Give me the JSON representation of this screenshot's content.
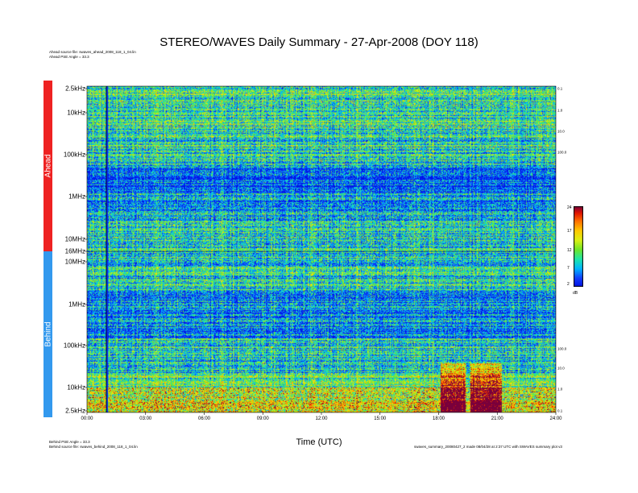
{
  "header": {
    "title": "STEREO/WAVES Daily Summary - 27-Apr-2008 (DOY 118)",
    "ahead_source": "Ahead source file: swaves_ahead_2008_118_1_04.lin",
    "ahead_pse": "Ahead PSE Angle = 33.3",
    "behind_pse": "Behind PSE Angle = 33.3",
    "behind_source": "Behind source file: swaves_behind_2008_118_1_04.lin",
    "footer_right": "swaves_summary_20080427_2 made 08/04/28 at 2:37 UTC with SWAVES summary plot v3"
  },
  "bands": {
    "ahead": "Ahead",
    "behind": "Behind"
  },
  "colors": {
    "ahead": "#ee2222",
    "behind": "#3399ee"
  },
  "chart_data": {
    "type": "heatmap",
    "title": "STEREO/WAVES Daily Summary - 27-Apr-2008 (DOY 118)",
    "xlabel": "Time (UTC)",
    "x_ticks": [
      "00:00",
      "03:00",
      "06:00",
      "09:00",
      "12:00",
      "15:00",
      "18:00",
      "21:00",
      "24:00"
    ],
    "xlim": [
      "00:00",
      "24:00"
    ],
    "panels": [
      {
        "name": "Ahead",
        "y_ticks": [
          "2.5kHz",
          "10kHz",
          "100kHz",
          "1MHz",
          "10MHz",
          "16MHz"
        ]
      },
      {
        "name": "Behind",
        "y_ticks": [
          "16MHz",
          "10MHz",
          "1MHz",
          "100kHz",
          "10kHz",
          "2.5kHz"
        ]
      }
    ],
    "right_ticks_top": [
      "0.1",
      "1.0",
      "10.0",
      "100.0"
    ],
    "right_ticks_bottom": [
      "100.0",
      "10.0",
      "1.0",
      "0.1"
    ],
    "colorbar": {
      "ticks": [
        "24",
        "17",
        "12",
        "7",
        "2"
      ],
      "unit": "dB",
      "range": [
        2,
        24
      ]
    }
  }
}
